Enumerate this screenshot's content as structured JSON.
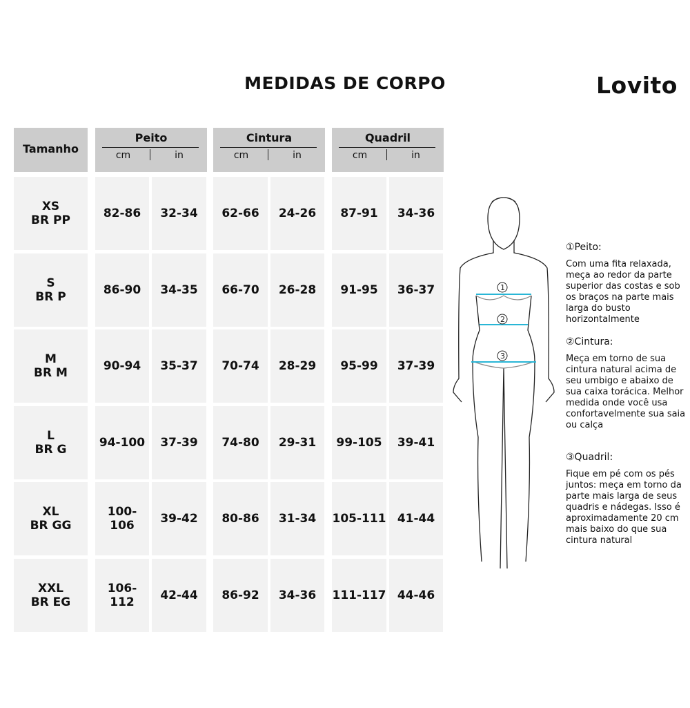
{
  "title": "MEDIDAS DE CORPO",
  "brand": "Lovito",
  "table": {
    "size_header": "Tamanho",
    "groups": [
      {
        "name": "Peito",
        "units": [
          "cm",
          "in"
        ]
      },
      {
        "name": "Cintura",
        "units": [
          "cm",
          "in"
        ]
      },
      {
        "name": "Quadril",
        "units": [
          "cm",
          "in"
        ]
      }
    ],
    "rows": [
      {
        "size": "XS",
        "br": "BR PP",
        "values": [
          "82-86",
          "32-34",
          "62-66",
          "24-26",
          "87-91",
          "34-36"
        ]
      },
      {
        "size": "S",
        "br": "BR P",
        "values": [
          "86-90",
          "34-35",
          "66-70",
          "26-28",
          "91-95",
          "36-37"
        ]
      },
      {
        "size": "M",
        "br": "BR M",
        "values": [
          "90-94",
          "35-37",
          "70-74",
          "28-29",
          "95-99",
          "37-39"
        ]
      },
      {
        "size": "L",
        "br": "BR G",
        "values": [
          "94-100",
          "37-39",
          "74-80",
          "29-31",
          "99-105",
          "39-41"
        ]
      },
      {
        "size": "XL",
        "br": "BR GG",
        "values": [
          "100-106",
          "39-42",
          "80-86",
          "31-34",
          "105-111",
          "41-44"
        ]
      },
      {
        "size": "XXL",
        "br": "BR EG",
        "values": [
          "106-112",
          "42-44",
          "86-92",
          "34-36",
          "111-117",
          "44-46"
        ]
      }
    ]
  },
  "figure": {
    "markers": [
      "1",
      "2",
      "3"
    ],
    "line_color": "#29b6d6"
  },
  "guide": [
    {
      "heading": "①Peito:",
      "text": "Com uma fita relaxada, meça ao redor da parte superior das costas e sob os braços na parte mais larga do busto horizontalmente"
    },
    {
      "heading": "②Cintura:",
      "text": "Meça em torno de sua cintura natural acima de seu umbigo e abaixo de sua caixa torácica. Melhor medida onde você usa confortavelmente sua saia ou calça"
    },
    {
      "heading": "③Quadril:",
      "text": "Fique em pé com os pés juntos: meça em torno da parte mais larga de seus quadris e nádegas. Isso é aproximadamente 20 cm mais baixo do que sua cintura natural"
    }
  ]
}
